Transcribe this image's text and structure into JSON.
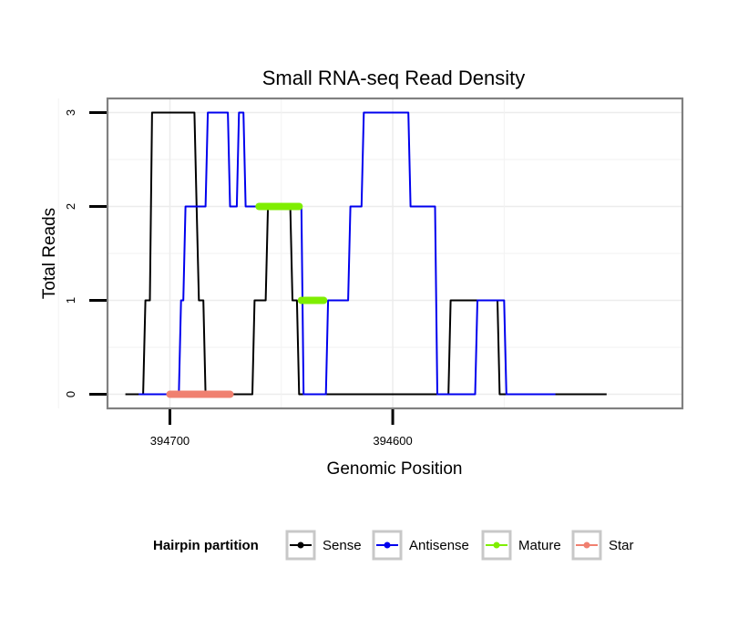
{
  "chart_data": {
    "type": "line",
    "title": "Small RNA-seq Read Density",
    "xlabel": "Genomic Position",
    "ylabel": "Total Reads",
    "x_reversed": true,
    "xlim": [
      394728,
      394470
    ],
    "ylim": [
      -0.15,
      3.15
    ],
    "x_ticks": [
      394700,
      394600
    ],
    "x_tick_labels": [
      "394700",
      "394600"
    ],
    "y_ticks": [
      0,
      1,
      2,
      3
    ],
    "y_tick_labels": [
      "0",
      "1",
      "2",
      "3"
    ],
    "grid": true,
    "legend": {
      "title": "Hairpin partition",
      "position": "bottom",
      "entries": [
        {
          "label": "Sense",
          "color": "#000000"
        },
        {
          "label": "Antisense",
          "color": "#0000ee"
        },
        {
          "label": "Mature",
          "color": "#7fee00"
        },
        {
          "label": "Star",
          "color": "#f08070"
        }
      ]
    },
    "series": [
      {
        "name": "Sense",
        "color": "#000000",
        "x": [
          394720,
          394712,
          394711,
          394710,
          394709,
          394708,
          394689,
          394688,
          394687,
          394685,
          394684,
          394663,
          394662,
          394661,
          394657,
          394656,
          394653,
          394652,
          394646,
          394645,
          394643,
          394642,
          394625,
          394624,
          394610,
          394609,
          394603,
          394602,
          394575,
          394574,
          394553,
          394552,
          394528,
          394527,
          394504
        ],
        "y": [
          0,
          0,
          1,
          1,
          1,
          3,
          3,
          2,
          1,
          1,
          0,
          0,
          1,
          1,
          1,
          2,
          2,
          2,
          2,
          1,
          1,
          0,
          0,
          0,
          0,
          0,
          0,
          0,
          0,
          1,
          1,
          0,
          0,
          0,
          0
        ]
      },
      {
        "name": "Antisense",
        "color": "#0000ee",
        "x": [
          394714,
          394696,
          394695,
          394694,
          394693,
          394684,
          394683,
          394674,
          394673,
          394670,
          394669,
          394667,
          394666,
          394657,
          394656,
          394641,
          394640,
          394630,
          394629,
          394620,
          394619,
          394614,
          394613,
          394612,
          394611,
          394609,
          394608,
          394593,
          394592,
          394581,
          394580,
          394563,
          394562,
          394550,
          394549,
          394527
        ],
        "y": [
          0,
          0,
          1,
          1,
          2,
          2,
          3,
          3,
          2,
          2,
          3,
          3,
          2,
          2,
          2,
          2,
          0,
          0,
          1,
          1,
          2,
          2,
          3,
          3,
          3,
          3,
          3,
          3,
          2,
          2,
          0,
          0,
          1,
          1,
          0,
          0
        ]
      }
    ],
    "segments": [
      {
        "name": "Mature",
        "color": "#7fee00",
        "from": 394660,
        "to": 394642,
        "y": 2
      },
      {
        "name": "Mature",
        "color": "#7fee00",
        "from": 394641,
        "to": 394631,
        "y": 1
      },
      {
        "name": "Star",
        "color": "#f08070",
        "from": 394700,
        "to": 394673,
        "y": 0
      }
    ]
  }
}
